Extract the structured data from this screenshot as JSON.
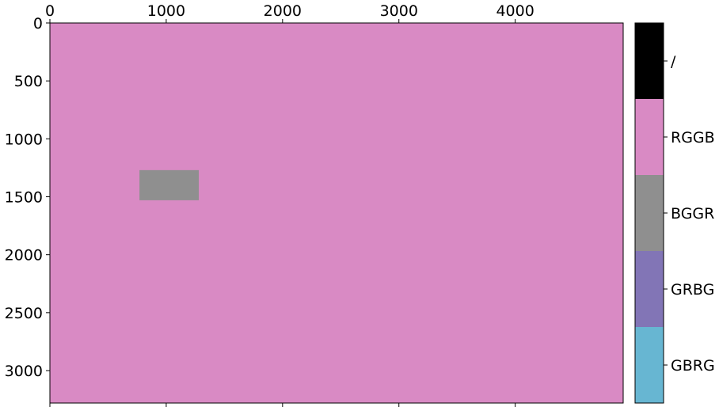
{
  "chart_data": {
    "type": "heatmap",
    "title": "",
    "xlabel": "",
    "ylabel": "",
    "xlim": [
      0,
      4928
    ],
    "ylim": [
      3280,
      0
    ],
    "xticks": [
      0,
      1000,
      2000,
      3000,
      4000
    ],
    "yticks": [
      0,
      500,
      1000,
      1500,
      2000,
      2500,
      3000
    ],
    "grid": false,
    "background_category": "RGGB",
    "regions": [
      {
        "category": "BGGR",
        "x": [
          770,
          1280
        ],
        "y": [
          1270,
          1530
        ]
      }
    ],
    "colorbar": {
      "labels": [
        "GBRG",
        "GRBG",
        "BGGR",
        "RGGB",
        "/"
      ],
      "colors": [
        "#67b6d2",
        "#8275b6",
        "#8f8f8f",
        "#d98ac4",
        "#000000"
      ]
    }
  }
}
